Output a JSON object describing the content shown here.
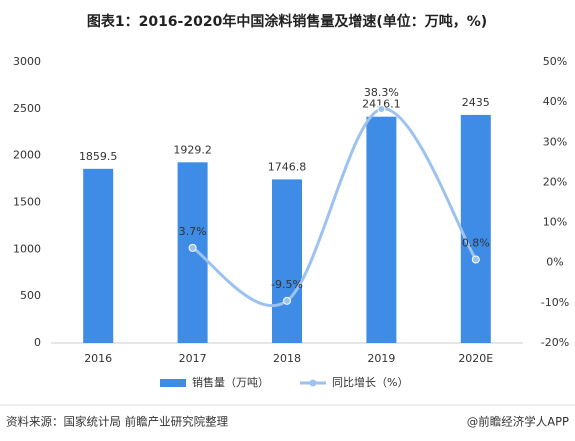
{
  "chart_data": {
    "type": "bar_line",
    "title": "图表1：2016-2020年中国涂料销售量及增速(单位：万吨，%)",
    "categories": [
      "2016",
      "2017",
      "2018",
      "2019",
      "2020E"
    ],
    "series": [
      {
        "name": "销售量（万吨）",
        "color": "#3e8ce6",
        "type": "bar",
        "values": [
          1859.5,
          1929.2,
          1746.8,
          2416.1,
          2435
        ]
      },
      {
        "name": "同比增长（%）",
        "color": "#9cc2f0",
        "type": "line",
        "axis": "y2",
        "values": [
          null,
          3.7,
          -9.5,
          38.3,
          0.8
        ],
        "value_labels": [
          null,
          "3.7%",
          "-9.5%",
          "38.3%",
          "0.8%"
        ]
      }
    ],
    "ylim": [
      0,
      3000
    ],
    "yticks": [
      0,
      500,
      1000,
      1500,
      2000,
      2500,
      3000
    ],
    "y2lim": [
      -20,
      50
    ],
    "y2ticks": [
      {
        "value": -20,
        "label": "-20%"
      },
      {
        "value": -10,
        "label": "-10%"
      },
      {
        "value": 0,
        "label": "0%"
      },
      {
        "value": 10,
        "label": "10%"
      },
      {
        "value": 20,
        "label": "20%"
      },
      {
        "value": 30,
        "label": "30%"
      },
      {
        "value": 40,
        "label": "40%"
      },
      {
        "value": 50,
        "label": "50%"
      }
    ],
    "legend": "bottom",
    "source": "资料来源：国家统计局 前瞻产业研究院整理",
    "credit": "@前瞻经济学人APP"
  }
}
